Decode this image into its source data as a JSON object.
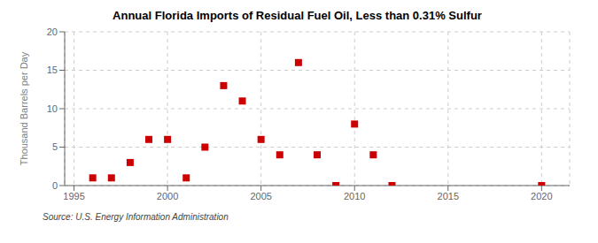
{
  "chart_data": {
    "type": "scatter",
    "title": "Annual Florida Imports of Residual Fuel Oil, Less than 0.31% Sulfur",
    "ylabel": "Thousand Barrels per Day",
    "annotations": [
      "Source: U.S. Energy Information Administration"
    ],
    "x": [
      1996,
      1997,
      1998,
      1999,
      2000,
      2001,
      2002,
      2003,
      2004,
      2005,
      2006,
      2007,
      2008,
      2009,
      2010,
      2011,
      2012,
      2020
    ],
    "values": [
      1,
      1,
      3,
      6,
      6,
      1,
      5,
      13,
      11,
      6,
      4,
      16,
      4,
      0,
      8,
      4,
      0,
      0
    ],
    "color": "#cc0000",
    "marker": "square",
    "xlim": [
      1994.5,
      2021.5
    ],
    "ylim": [
      0,
      20
    ],
    "xticks": [
      1995,
      2000,
      2005,
      2010,
      2015,
      2020
    ],
    "yticks": [
      0,
      5,
      10,
      15,
      20
    ],
    "grid": true
  }
}
